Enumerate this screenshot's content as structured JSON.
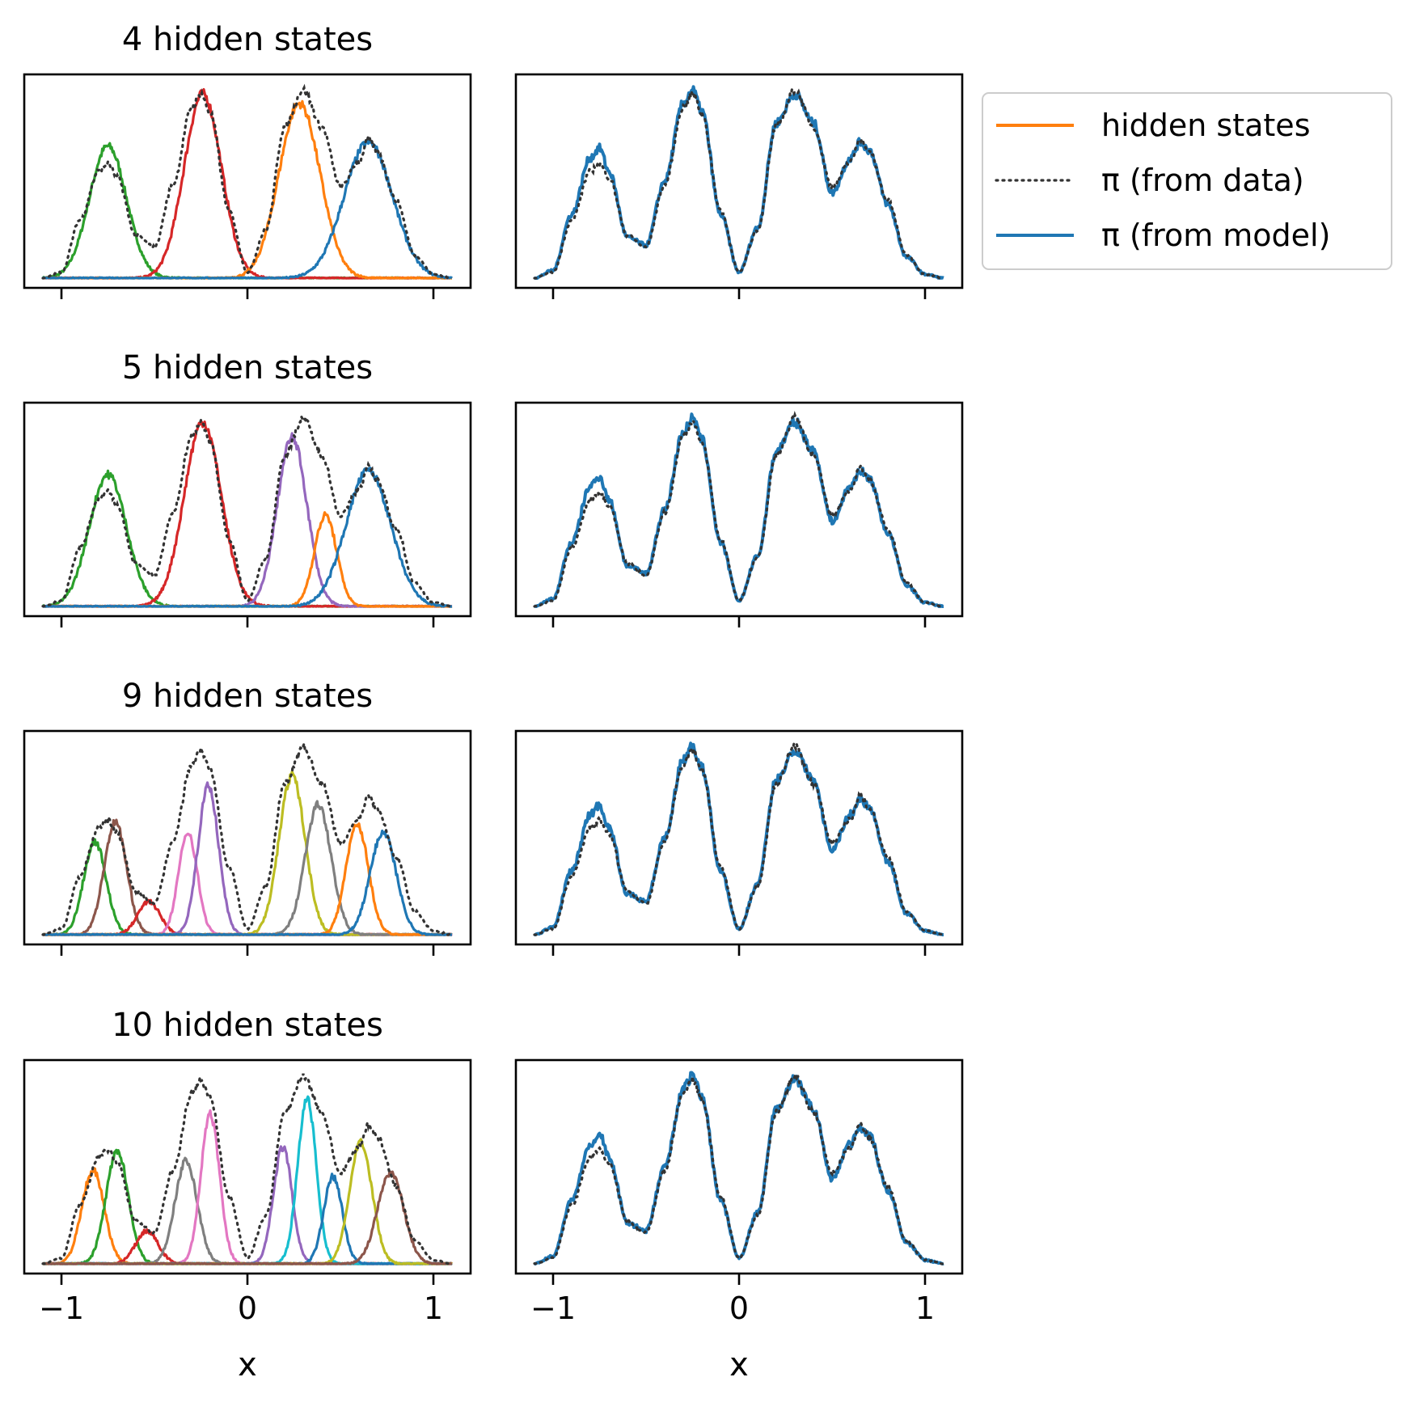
{
  "chart_data": {
    "type": "line",
    "x": [
      -1.1,
      -1.0,
      -0.9,
      -0.8,
      -0.75,
      -0.7,
      -0.6,
      -0.5,
      -0.4,
      -0.3,
      -0.25,
      -0.2,
      -0.1,
      0.0,
      0.1,
      0.2,
      0.3,
      0.4,
      0.5,
      0.6,
      0.65,
      0.7,
      0.8,
      0.9,
      1.0,
      1.1
    ],
    "xlim": [
      -1.2,
      1.2
    ],
    "xticks": [
      -1,
      0,
      1
    ],
    "xtick_labels": [
      "−1",
      "0",
      "1"
    ],
    "xlabel": "x",
    "y_axis_ticks_shown": false,
    "grid": false,
    "legend": {
      "placement": "right of top row",
      "entries": [
        {
          "label": "hidden states",
          "color": "#ff7f0e",
          "style": "solid"
        },
        {
          "label": "π (from data)",
          "color": "#333333",
          "style": "dotted"
        },
        {
          "label": "π (from model)",
          "color": "#1f77b4",
          "style": "solid"
        }
      ]
    },
    "pi_data": [
      0.0,
      0.03,
      0.3,
      0.55,
      0.59,
      0.52,
      0.22,
      0.16,
      0.48,
      0.88,
      0.95,
      0.85,
      0.35,
      0.03,
      0.25,
      0.78,
      0.97,
      0.78,
      0.47,
      0.6,
      0.72,
      0.65,
      0.4,
      0.12,
      0.02,
      0.0
    ],
    "pi_model": [
      0.0,
      0.04,
      0.33,
      0.62,
      0.67,
      0.55,
      0.21,
      0.17,
      0.5,
      0.9,
      0.97,
      0.86,
      0.33,
      0.03,
      0.26,
      0.8,
      0.95,
      0.8,
      0.44,
      0.62,
      0.7,
      0.66,
      0.38,
      0.11,
      0.02,
      0.0
    ],
    "rows": [
      {
        "title": "4 hidden states",
        "states": [
          {
            "color": "#2ca02c",
            "mu": -0.75,
            "sigma": 0.1,
            "amp": 0.68
          },
          {
            "color": "#d62728",
            "mu": -0.24,
            "sigma": 0.1,
            "amp": 0.95
          },
          {
            "color": "#ff7f0e",
            "mu": 0.28,
            "sigma": 0.11,
            "amp": 0.9
          },
          {
            "color": "#1f77b4",
            "mu": 0.65,
            "sigma": 0.13,
            "amp": 0.7
          }
        ]
      },
      {
        "title": "5 hidden states",
        "states": [
          {
            "color": "#2ca02c",
            "mu": -0.75,
            "sigma": 0.1,
            "amp": 0.68
          },
          {
            "color": "#d62728",
            "mu": -0.24,
            "sigma": 0.1,
            "amp": 0.95
          },
          {
            "color": "#9467bd",
            "mu": 0.24,
            "sigma": 0.08,
            "amp": 0.87
          },
          {
            "color": "#ff7f0e",
            "mu": 0.42,
            "sigma": 0.06,
            "amp": 0.47
          },
          {
            "color": "#1f77b4",
            "mu": 0.65,
            "sigma": 0.12,
            "amp": 0.7
          }
        ]
      },
      {
        "title": "9 hidden states",
        "states": [
          {
            "color": "#2ca02c",
            "mu": -0.82,
            "sigma": 0.06,
            "amp": 0.48
          },
          {
            "color": "#8c564b",
            "mu": -0.71,
            "sigma": 0.06,
            "amp": 0.58
          },
          {
            "color": "#d62728",
            "mu": -0.53,
            "sigma": 0.06,
            "amp": 0.17
          },
          {
            "color": "#e377c2",
            "mu": -0.32,
            "sigma": 0.05,
            "amp": 0.53
          },
          {
            "color": "#9467bd",
            "mu": -0.21,
            "sigma": 0.055,
            "amp": 0.77
          },
          {
            "color": "#bcbd22",
            "mu": 0.24,
            "sigma": 0.07,
            "amp": 0.82
          },
          {
            "color": "#7f7f7f",
            "mu": 0.38,
            "sigma": 0.07,
            "amp": 0.67
          },
          {
            "color": "#ff7f0e",
            "mu": 0.59,
            "sigma": 0.06,
            "amp": 0.57
          },
          {
            "color": "#1f77b4",
            "mu": 0.73,
            "sigma": 0.07,
            "amp": 0.53
          }
        ]
      },
      {
        "title": "10 hidden states",
        "states": [
          {
            "color": "#ff7f0e",
            "mu": -0.83,
            "sigma": 0.06,
            "amp": 0.48
          },
          {
            "color": "#2ca02c",
            "mu": -0.7,
            "sigma": 0.06,
            "amp": 0.58
          },
          {
            "color": "#d62728",
            "mu": -0.54,
            "sigma": 0.06,
            "amp": 0.17
          },
          {
            "color": "#7f7f7f",
            "mu": -0.33,
            "sigma": 0.06,
            "amp": 0.53
          },
          {
            "color": "#e377c2",
            "mu": -0.2,
            "sigma": 0.05,
            "amp": 0.77
          },
          {
            "color": "#9467bd",
            "mu": 0.19,
            "sigma": 0.05,
            "amp": 0.6
          },
          {
            "color": "#17becf",
            "mu": 0.32,
            "sigma": 0.05,
            "amp": 0.85
          },
          {
            "color": "#1f77b4",
            "mu": 0.46,
            "sigma": 0.05,
            "amp": 0.45
          },
          {
            "color": "#bcbd22",
            "mu": 0.61,
            "sigma": 0.06,
            "amp": 0.63
          },
          {
            "color": "#8c564b",
            "mu": 0.77,
            "sigma": 0.07,
            "amp": 0.47
          }
        ]
      }
    ]
  }
}
